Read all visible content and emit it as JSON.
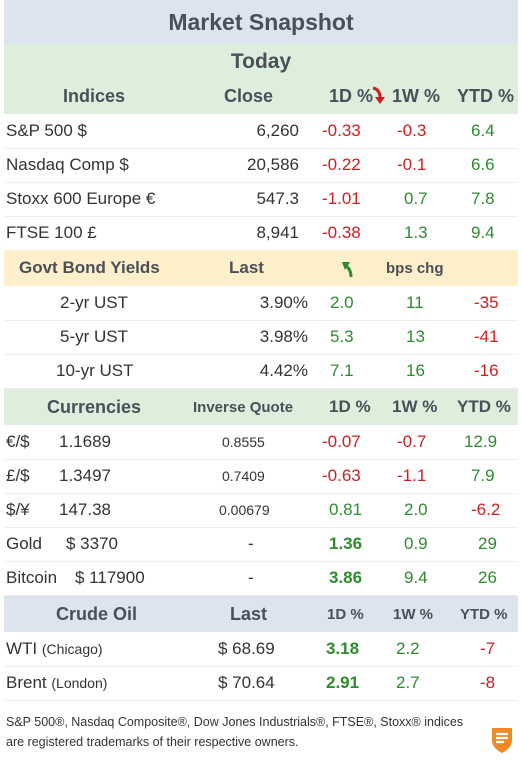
{
  "title": "Market Snapshot",
  "today": "Today",
  "indices": {
    "headers": [
      "Indices",
      "Close",
      "1D %",
      "1W %",
      "YTD %"
    ],
    "rows": [
      {
        "name": "S&P 500  $",
        "close": "6,260",
        "d1": "-0.33",
        "w1": "-0.3",
        "ytd": "6.4"
      },
      {
        "name": "Nasdaq Comp  $",
        "close": "20,586",
        "d1": "-0.22",
        "w1": "-0.1",
        "ytd": "6.6"
      },
      {
        "name": "Stoxx 600 Europe  €",
        "close": "547.3",
        "d1": "-1.01",
        "w1": "0.7",
        "ytd": "7.8"
      },
      {
        "name": "FTSE 100  £",
        "close": "8,941",
        "d1": "-0.38",
        "w1": "1.3",
        "ytd": "9.4"
      }
    ]
  },
  "bonds": {
    "headers": [
      "Govt Bond Yields",
      "Last",
      "bps chg"
    ],
    "rows": [
      {
        "name": "2-yr UST",
        "last": "3.90%",
        "d1": "2.0",
        "w1": "11",
        "ytd": "-35"
      },
      {
        "name": "5-yr UST",
        "last": "3.98%",
        "d1": "5.3",
        "w1": "13",
        "ytd": "-41"
      },
      {
        "name": "10-yr UST",
        "last": "4.42%",
        "d1": "7.1",
        "w1": "16",
        "ytd": "-16"
      }
    ]
  },
  "currencies": {
    "headers": [
      "Currencies",
      "Inverse Quote",
      "1D %",
      "1W %",
      "YTD %"
    ],
    "rows": [
      {
        "name": "€/$",
        "rate": "1.1689",
        "inverse": "0.8555",
        "d1": "-0.07",
        "w1": "-0.7",
        "ytd": "12.9"
      },
      {
        "name": "£/$",
        "rate": "1.3497",
        "inverse": "0.7409",
        "d1": "-0.63",
        "w1": "-1.1",
        "ytd": "7.9"
      },
      {
        "name": "$/¥",
        "rate": "147.38",
        "inverse": "0.00679",
        "d1": "0.81",
        "w1": "2.0",
        "ytd": "-6.2"
      },
      {
        "name": "Gold",
        "rate": "$ 3370",
        "inverse": "-",
        "d1": "1.36",
        "w1": "0.9",
        "ytd": "29"
      },
      {
        "name": "Bitcoin",
        "rate": "$ 117900",
        "inverse": "-",
        "d1": "3.86",
        "w1": "9.4",
        "ytd": "26"
      }
    ]
  },
  "oil": {
    "headers": [
      "Crude Oil",
      "Last",
      "1D %",
      "1W %",
      "YTD %"
    ],
    "rows": [
      {
        "name": "WTI",
        "place": "(Chicago)",
        "last": "$ 68.69",
        "d1": "3.18",
        "w1": "2.2",
        "ytd": "-7"
      },
      {
        "name": "Brent",
        "place": "(London)",
        "last": "$ 70.64",
        "d1": "2.91",
        "w1": "2.7",
        "ytd": "-8"
      }
    ]
  },
  "footnote": "S&P 500®, Nasdaq Composite®, Dow Jones Industrials®, FTSE®, Stoxx® indices are registered trademarks of their respective owners.",
  "colors": {
    "negative": "#cc1f1f",
    "positive": "#2e8b2e",
    "logo": "#f08a24"
  },
  "icons": {
    "down": "red-down-arrow-icon",
    "up": "green-up-arrow-icon",
    "logo": "brand-logo-icon"
  }
}
